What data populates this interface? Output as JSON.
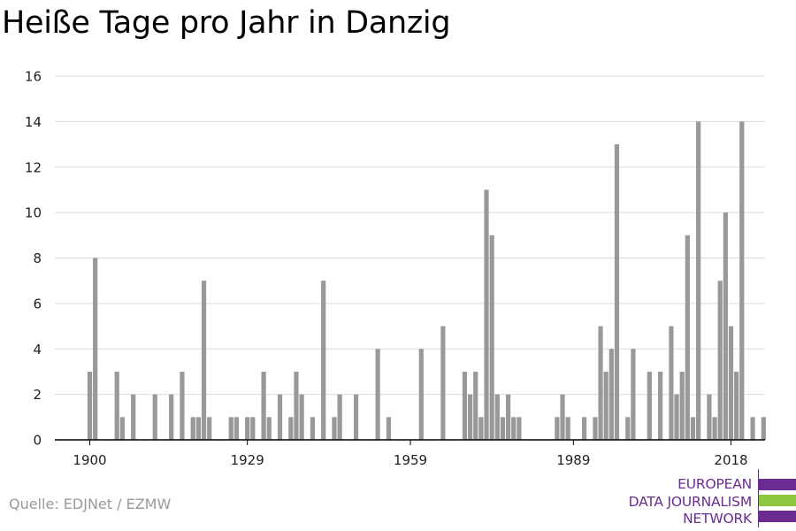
{
  "chart_data": {
    "type": "bar",
    "title": "Heiße Tage pro Jahr in Danzig",
    "x": [
      1900,
      1901,
      1905,
      1906,
      1908,
      1912,
      1915,
      1917,
      1919,
      1920,
      1921,
      1922,
      1926,
      1927,
      1929,
      1930,
      1932,
      1933,
      1935,
      1937,
      1938,
      1939,
      1941,
      1943,
      1945,
      1946,
      1949,
      1953,
      1955,
      1961,
      1965,
      1969,
      1970,
      1971,
      1972,
      1973,
      1974,
      1975,
      1976,
      1977,
      1978,
      1979,
      1986,
      1987,
      1988,
      1991,
      1993,
      1994,
      1995,
      1996,
      1997,
      1999,
      2000,
      2003,
      2005,
      2007,
      2008,
      2009,
      2010,
      2011,
      2012,
      2014,
      2015,
      2016,
      2017,
      2018,
      2019,
      2020,
      2022,
      2024
    ],
    "values": [
      3,
      8,
      3,
      1,
      2,
      2,
      2,
      3,
      1,
      1,
      7,
      1,
      1,
      1,
      1,
      1,
      3,
      1,
      2,
      1,
      3,
      2,
      1,
      7,
      1,
      2,
      2,
      4,
      1,
      4,
      5,
      3,
      2,
      3,
      1,
      11,
      9,
      2,
      1,
      2,
      1,
      1,
      1,
      2,
      1,
      1,
      1,
      5,
      3,
      4,
      13,
      1,
      4,
      3,
      3,
      5,
      2,
      3,
      9,
      1,
      14,
      2,
      1,
      7,
      10,
      5,
      3,
      14,
      1,
      1
    ],
    "xticks": [
      "1900",
      "1929",
      "1959",
      "1989",
      "2018"
    ],
    "yticks": [
      "0",
      "2",
      "4",
      "6",
      "8",
      "10",
      "12",
      "14",
      "16"
    ],
    "ylim": [
      0,
      16
    ],
    "grid": true,
    "bar_color": "#999999"
  },
  "source": "Quelle: EDJNet / EZMW",
  "logo": {
    "lines": [
      "EUROPEAN",
      "DATA JOURNALISM",
      "NETWORK"
    ],
    "purple": "#6b2c91",
    "green": "#8dc63f"
  }
}
